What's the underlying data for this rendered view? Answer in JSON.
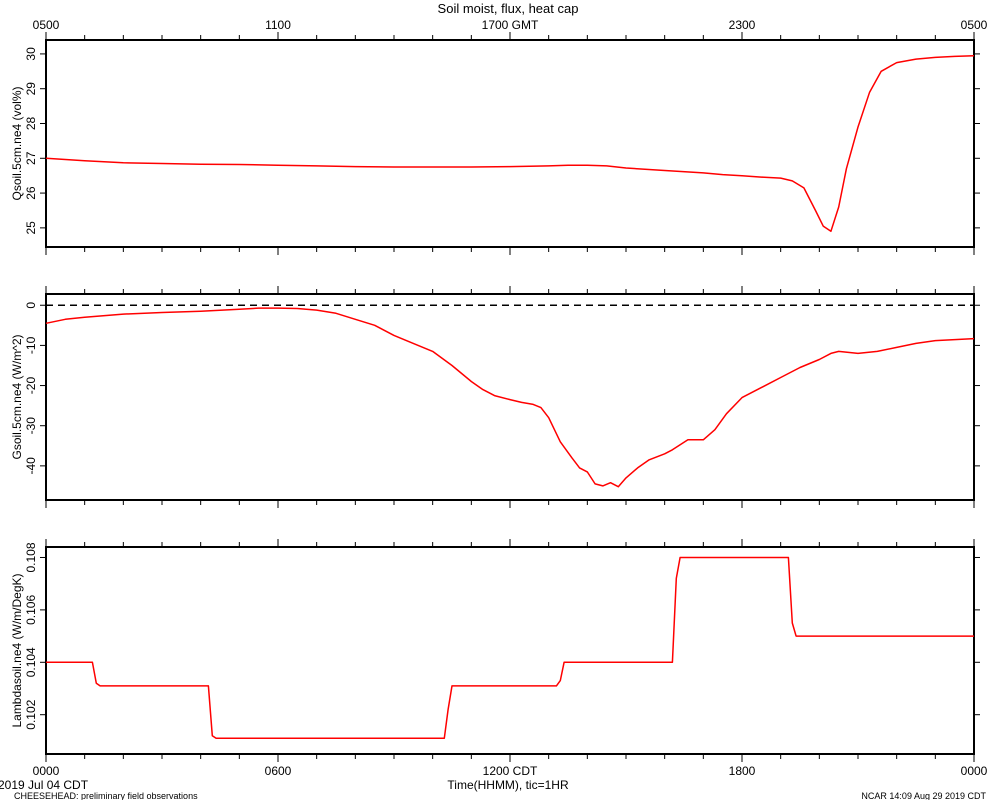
{
  "figure": {
    "title": "Soil moist, flux, heat cap",
    "top_axis_ticks": [
      "0500",
      "1100",
      "1700 GMT",
      "2300",
      "0500"
    ],
    "bottom_axis_ticks": [
      "0000",
      "0600",
      "1200 CDT",
      "1800",
      "0000"
    ],
    "bottom_axis_label": "Time(HHMM), tic=1HR",
    "date_label": "2019 Jul 04 CDT",
    "footer_left": "CHEESEHEAD: preliminary field observations",
    "footer_right": "NCAR 14:09 Aug 29 2019 CDT",
    "line_color": "#ff0000"
  },
  "chart_data": [
    {
      "type": "line",
      "ylabel": "Qsoil.5cm.ne4 (vol%)",
      "yticks": [
        25,
        26,
        27,
        28,
        29,
        30
      ],
      "ylim": [
        24.45,
        30.4
      ],
      "xlim": [
        0,
        24
      ],
      "series": [
        {
          "x": [
            0,
            1,
            2,
            3,
            4,
            5,
            6,
            7,
            8,
            9,
            10,
            11,
            12,
            12.5,
            13,
            13.5,
            14,
            14.5,
            15,
            16,
            17,
            17.5,
            18,
            18.5,
            19,
            19.3,
            19.6,
            19.9,
            20.1,
            20.3,
            20.5,
            20.7,
            21,
            21.3,
            21.6,
            22,
            22.5,
            23,
            23.5,
            24
          ],
          "y": [
            27.0,
            26.93,
            26.87,
            26.85,
            26.83,
            26.82,
            26.8,
            26.78,
            26.76,
            26.75,
            26.75,
            26.75,
            26.76,
            26.77,
            26.78,
            26.8,
            26.8,
            26.78,
            26.72,
            26.65,
            26.58,
            26.53,
            26.5,
            26.46,
            26.43,
            26.35,
            26.15,
            25.5,
            25.05,
            24.9,
            25.6,
            26.7,
            27.9,
            28.9,
            29.5,
            29.75,
            29.85,
            29.9,
            29.93,
            29.95
          ]
        }
      ]
    },
    {
      "type": "line",
      "ylabel": "Gsoil.5cm.ne4 (W/m^2)",
      "yticks": [
        0,
        -10,
        -20,
        -30,
        -40
      ],
      "ylim": [
        -48.5,
        2.8
      ],
      "xlim": [
        0,
        24
      ],
      "reference_line": 0,
      "series": [
        {
          "x": [
            0,
            0.5,
            1,
            2,
            3,
            4,
            5,
            5.5,
            6,
            6.5,
            7,
            7.5,
            8,
            8.5,
            9,
            9.5,
            10,
            10.5,
            11,
            11.3,
            11.6,
            12,
            12.3,
            12.6,
            12.8,
            13,
            13.3,
            13.6,
            13.8,
            14,
            14.2,
            14.4,
            14.6,
            14.8,
            15,
            15.3,
            15.6,
            16,
            16.2,
            16.6,
            17,
            17.3,
            17.6,
            18,
            18.5,
            19,
            19.5,
            20,
            20.3,
            20.5,
            21,
            21.5,
            22,
            22.5,
            23,
            24
          ],
          "y": [
            -4.5,
            -3.5,
            -3,
            -2.2,
            -1.8,
            -1.5,
            -1,
            -0.7,
            -0.7,
            -0.8,
            -1.2,
            -2,
            -3.5,
            -5,
            -7.5,
            -9.5,
            -11.5,
            -15,
            -19,
            -21,
            -22.5,
            -23.5,
            -24.2,
            -24.7,
            -25.5,
            -28,
            -34,
            -38,
            -40.5,
            -41.5,
            -44.5,
            -45,
            -44.2,
            -45.2,
            -43,
            -40.5,
            -38.5,
            -37,
            -36,
            -33.5,
            -33.5,
            -31,
            -27,
            -23,
            -20.5,
            -18,
            -15.5,
            -13.5,
            -12,
            -11.5,
            -12,
            -11.5,
            -10.5,
            -9.5,
            -8.8,
            -8.3
          ]
        }
      ]
    },
    {
      "type": "line",
      "ylabel": "Lambdasoil.ne4 (W/m/DegK)",
      "yticks": [
        0.102,
        0.104,
        0.106,
        0.108
      ],
      "ylim": [
        0.1005,
        0.1084
      ],
      "xlim": [
        0,
        24
      ],
      "series": [
        {
          "x": [
            0,
            1.2,
            1.3,
            1.4,
            4.2,
            4.3,
            4.4,
            10.3,
            10.4,
            10.5,
            13.2,
            13.3,
            13.4,
            16.2,
            16.3,
            16.4,
            19.2,
            19.3,
            19.4,
            24
          ],
          "y": [
            0.104,
            0.104,
            0.1032,
            0.1031,
            0.1031,
            0.1012,
            0.1011,
            0.1011,
            0.1022,
            0.1031,
            0.1031,
            0.1033,
            0.104,
            0.104,
            0.1072,
            0.108,
            0.108,
            0.1055,
            0.105,
            0.105
          ]
        }
      ]
    }
  ]
}
